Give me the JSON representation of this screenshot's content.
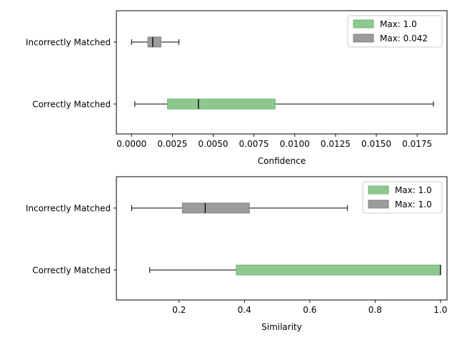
{
  "chart_data": [
    {
      "type": "boxplot",
      "orientation": "horizontal",
      "xlabel": "Confidence",
      "xlim": [
        -0.00093,
        0.01933
      ],
      "xticks": [
        0.0,
        0.0025,
        0.005,
        0.0075,
        0.01,
        0.0125,
        0.015,
        0.0175
      ],
      "xtick_labels": [
        "0.0000",
        "0.0025",
        "0.0050",
        "0.0075",
        "0.0100",
        "0.0125",
        "0.0150",
        "0.0175"
      ],
      "categories": [
        "Incorrectly Matched",
        "Correctly Matched"
      ],
      "boxes": [
        {
          "category": "Incorrectly Matched",
          "whislo": 0.0,
          "q1": 0.001,
          "med": 0.0013,
          "q3": 0.0018,
          "whishi": 0.0029,
          "color": "#808080"
        },
        {
          "category": "Correctly Matched",
          "whislo": 0.0002,
          "q1": 0.0022,
          "med": 0.0041,
          "q3": 0.0088,
          "whishi": 0.0185,
          "color": "#70b870"
        }
      ],
      "legend": {
        "placement": "top-right",
        "entries": [
          {
            "label": "Max: 1.0",
            "color": "#70b870"
          },
          {
            "label": "Max: 0.042",
            "color": "#808080"
          }
        ]
      }
    },
    {
      "type": "boxplot",
      "orientation": "horizontal",
      "xlabel": "Similarity",
      "xlim": [
        0.008,
        1.02
      ],
      "xticks": [
        0.2,
        0.4,
        0.6,
        0.8,
        1.0
      ],
      "xtick_labels": [
        "0.2",
        "0.4",
        "0.6",
        "0.8",
        "1.0"
      ],
      "categories": [
        "Incorrectly Matched",
        "Correctly Matched"
      ],
      "boxes": [
        {
          "category": "Incorrectly Matched",
          "whislo": 0.055,
          "q1": 0.21,
          "med": 0.28,
          "q3": 0.415,
          "whishi": 0.715,
          "color": "#808080"
        },
        {
          "category": "Correctly Matched",
          "whislo": 0.11,
          "q1": 0.375,
          "med": 1.0,
          "q3": 1.0,
          "whishi": 1.0,
          "color": "#70b870"
        }
      ],
      "legend": {
        "placement": "top-right",
        "entries": [
          {
            "label": "Max: 1.0",
            "color": "#70b870"
          },
          {
            "label": "Max: 1.0",
            "color": "#808080"
          }
        ]
      }
    }
  ]
}
